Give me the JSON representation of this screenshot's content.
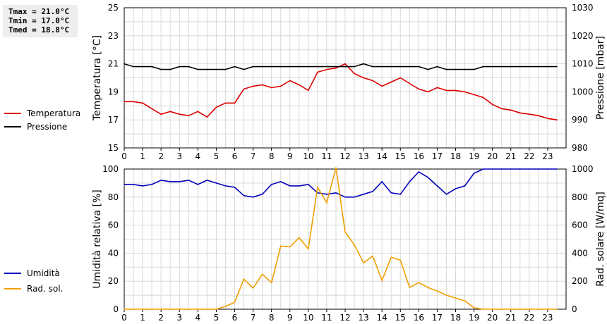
{
  "stats": {
    "tmax": "Tmax = 21.0°C",
    "tmin": "Tmin = 17.0°C",
    "tmed": "Tmed = 18.8°C"
  },
  "chart_data": [
    {
      "type": "line",
      "xlim": [
        0,
        24
      ],
      "x_ticks": [
        "0",
        "1",
        "2",
        "3",
        "4",
        "5",
        "6",
        "7",
        "8",
        "9",
        "10",
        "11",
        "12",
        "13",
        "14",
        "15",
        "16",
        "17",
        "18",
        "19",
        "20",
        "21",
        "22",
        "23"
      ],
      "y_left": {
        "label": "Temperatura [°C]",
        "lim": [
          15,
          25
        ],
        "ticks": [
          "15",
          "17",
          "19",
          "21",
          "23",
          "25"
        ]
      },
      "y_right": {
        "label": "Pressione [mbar]",
        "lim": [
          980,
          1030
        ],
        "ticks": [
          "980",
          "990",
          "1000",
          "1010",
          "1020",
          "1030"
        ]
      },
      "grid": true,
      "legend_placement": "left",
      "series": [
        {
          "name": "Temperatura",
          "color": "#dd0000",
          "axis": "left",
          "x": [
            0,
            0.5,
            1,
            1.5,
            2,
            2.5,
            3,
            3.5,
            4,
            4.5,
            5,
            5.5,
            6,
            6.5,
            7,
            7.5,
            8,
            8.5,
            9,
            9.5,
            10,
            10.5,
            11,
            11.5,
            12,
            12.5,
            13,
            13.5,
            14,
            14.5,
            15,
            15.5,
            16,
            16.5,
            17,
            17.5,
            18,
            18.5,
            19,
            19.5,
            20,
            20.5,
            21,
            21.5,
            22,
            22.5,
            23,
            23.5
          ],
          "y": [
            18.3,
            18.3,
            18.2,
            17.8,
            17.4,
            17.6,
            17.4,
            17.3,
            17.6,
            17.2,
            17.9,
            18.2,
            18.2,
            19.2,
            19.4,
            19.5,
            19.3,
            19.4,
            19.8,
            19.5,
            19.1,
            20.4,
            20.6,
            20.7,
            21.0,
            20.3,
            20.0,
            19.8,
            19.4,
            19.7,
            20.0,
            19.6,
            19.2,
            19.0,
            19.3,
            19.1,
            19.1,
            19.0,
            18.8,
            18.6,
            18.1,
            17.8,
            17.7,
            17.5,
            17.4,
            17.3,
            17.1,
            17.0
          ]
        },
        {
          "name": "Pressione",
          "color": "#000000",
          "axis": "right",
          "x": [
            0,
            0.5,
            1,
            1.5,
            2,
            2.5,
            3,
            3.5,
            4,
            4.5,
            5,
            5.5,
            6,
            6.5,
            7,
            7.5,
            8,
            8.5,
            9,
            9.5,
            10,
            10.5,
            11,
            11.5,
            12,
            12.5,
            13,
            13.5,
            14,
            14.5,
            15,
            15.5,
            16,
            16.5,
            17,
            17.5,
            18,
            18.5,
            19,
            19.5,
            20,
            20.5,
            21,
            21.5,
            22,
            22.5,
            23,
            23.5
          ],
          "y": [
            1010,
            1009,
            1009,
            1009,
            1008,
            1008,
            1009,
            1009,
            1008,
            1008,
            1008,
            1008,
            1009,
            1008,
            1009,
            1009,
            1009,
            1009,
            1009,
            1009,
            1009,
            1009,
            1009,
            1009,
            1009,
            1009,
            1010,
            1009,
            1009,
            1009,
            1009,
            1009,
            1009,
            1008,
            1009,
            1008,
            1008,
            1008,
            1008,
            1009,
            1009,
            1009,
            1009,
            1009,
            1009,
            1009,
            1009,
            1009
          ]
        }
      ]
    },
    {
      "type": "line",
      "xlim": [
        0,
        24
      ],
      "x_ticks": [
        "0",
        "1",
        "2",
        "3",
        "4",
        "5",
        "6",
        "7",
        "8",
        "9",
        "10",
        "11",
        "12",
        "13",
        "14",
        "15",
        "16",
        "17",
        "18",
        "19",
        "20",
        "21",
        "22",
        "23"
      ],
      "y_left": {
        "label": "Umidità relativa [%]",
        "lim": [
          0,
          100
        ],
        "ticks": [
          "0",
          "20",
          "40",
          "60",
          "80",
          "100"
        ]
      },
      "y_right": {
        "label": "Rad. solare [W/mq]",
        "lim": [
          0,
          1000
        ],
        "ticks": [
          "0",
          "200",
          "400",
          "600",
          "800",
          "1000"
        ]
      },
      "grid": true,
      "legend_placement": "left",
      "series": [
        {
          "name": "Umidità",
          "color": "#0000bb",
          "axis": "left",
          "x": [
            0,
            0.5,
            1,
            1.5,
            2,
            2.5,
            3,
            3.5,
            4,
            4.5,
            5,
            5.5,
            6,
            6.5,
            7,
            7.5,
            8,
            8.5,
            9,
            9.5,
            10,
            10.5,
            11,
            11.5,
            12,
            12.5,
            13,
            13.5,
            14,
            14.5,
            15,
            15.5,
            16,
            16.5,
            17,
            17.5,
            18,
            18.5,
            19,
            19.5,
            20,
            20.5,
            21,
            21.5,
            22,
            22.5,
            23,
            23.5
          ],
          "y": [
            89,
            89,
            88,
            89,
            92,
            91,
            91,
            92,
            89,
            92,
            90,
            88,
            87,
            81,
            80,
            82,
            89,
            91,
            88,
            88,
            89,
            83,
            82,
            83,
            80,
            80,
            82,
            84,
            91,
            83,
            82,
            91,
            98,
            94,
            88,
            82,
            86,
            88,
            97,
            100,
            100,
            100,
            100,
            100,
            100,
            100,
            100,
            100
          ]
        },
        {
          "name": "Rad. sol.",
          "color": "#f0a000",
          "axis": "right",
          "x": [
            0,
            0.5,
            1,
            1.5,
            2,
            2.5,
            3,
            3.5,
            4,
            4.5,
            5,
            5.5,
            6,
            6.5,
            7,
            7.5,
            8,
            8.5,
            9,
            9.5,
            10,
            10.5,
            11,
            11.5,
            12,
            12.5,
            13,
            13.5,
            14,
            14.5,
            15,
            15.5,
            16,
            16.5,
            17,
            17.5,
            18,
            18.5,
            19,
            19.5,
            20,
            20.5,
            21,
            21.5,
            22,
            22.5,
            23,
            23.5
          ],
          "y": [
            0,
            0,
            0,
            0,
            0,
            0,
            0,
            0,
            0,
            0,
            0,
            20,
            50,
            215,
            150,
            250,
            190,
            450,
            445,
            510,
            430,
            870,
            760,
            1010,
            550,
            460,
            330,
            380,
            205,
            370,
            350,
            155,
            190,
            155,
            130,
            100,
            80,
            60,
            10,
            0,
            0,
            0,
            0,
            0,
            0,
            0,
            0,
            0
          ]
        }
      ]
    }
  ]
}
